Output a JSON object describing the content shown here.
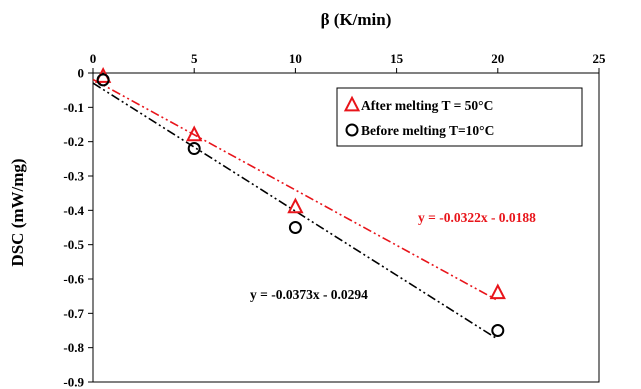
{
  "chart_data": {
    "type": "scatter",
    "title": "",
    "xlabel": "β (K/min)",
    "ylabel": "DSC (mW/mg)",
    "xlim": [
      0,
      25
    ],
    "ylim": [
      -0.9,
      0
    ],
    "x_ticks": [
      0,
      5,
      10,
      15,
      20,
      25
    ],
    "y_ticks": [
      0,
      -0.1,
      -0.2,
      -0.3,
      -0.4,
      -0.5,
      -0.6,
      -0.7,
      -0.8,
      -0.9
    ],
    "x_tick_labels": [
      "0",
      "5",
      "10",
      "15",
      "20",
      "25"
    ],
    "y_tick_labels": [
      "0",
      "-0.1",
      "-0.2",
      "-0.3",
      "-0.4",
      "-0.5",
      "-0.6",
      "-0.7",
      "-0.8",
      "-0.9"
    ],
    "x_axis_position": "top",
    "grid": false,
    "legend_position": "top-right",
    "series": [
      {
        "name": "After melting T = 50°C",
        "marker": "triangle",
        "color": "#e8141a",
        "x": [
          0.5,
          5,
          10,
          20
        ],
        "y": [
          -0.01,
          -0.18,
          -0.39,
          -0.64
        ],
        "trendline": {
          "slope": -0.0322,
          "intercept": -0.0188,
          "label": "y = -0.0322x - 0.0188"
        }
      },
      {
        "name": "Before melting T=10°C",
        "marker": "circle",
        "color": "#000000",
        "x": [
          0.5,
          5,
          10,
          20
        ],
        "y": [
          -0.02,
          -0.22,
          -0.45,
          -0.75
        ],
        "trendline": {
          "slope": -0.0373,
          "intercept": -0.0294,
          "label": "y = -0.0373x - 0.0294"
        }
      }
    ]
  }
}
